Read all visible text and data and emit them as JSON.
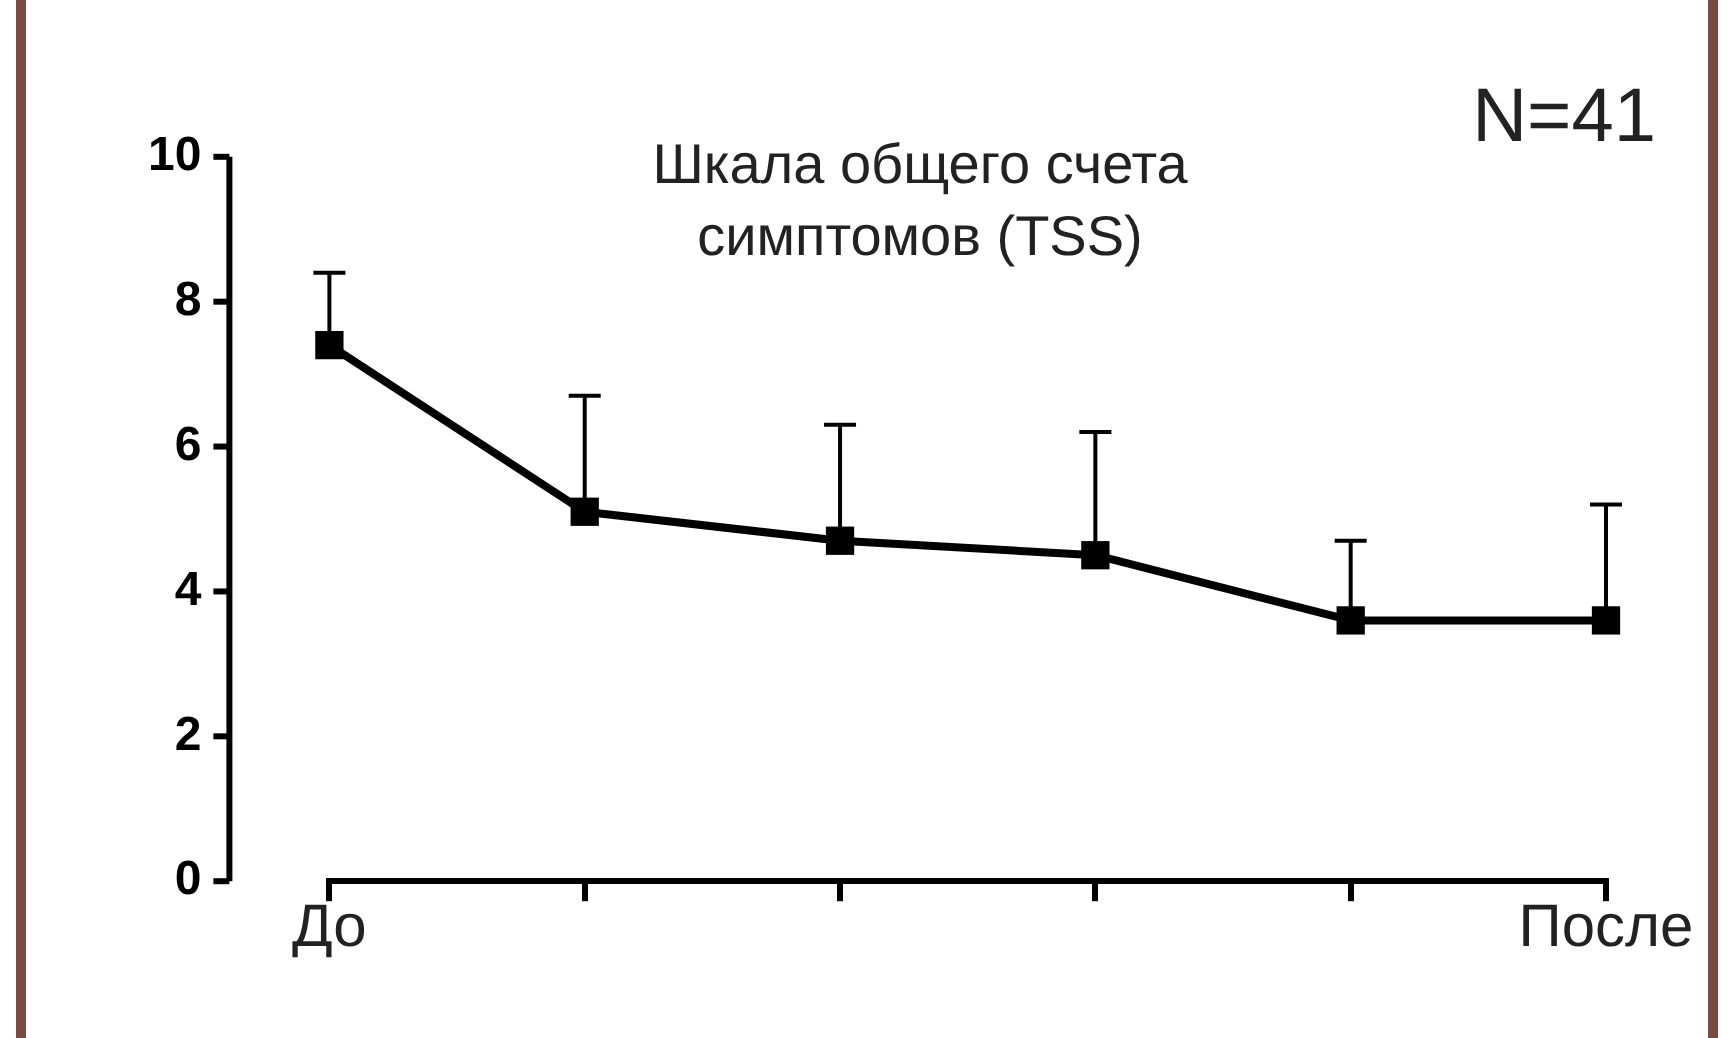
{
  "chart_data": {
    "type": "line",
    "title": "Шкала общего счета симптомов (TSS)",
    "categories": [
      "До",
      null,
      null,
      null,
      null,
      "После"
    ],
    "series": [
      {
        "color": "#000000",
        "values": [
          7.4,
          5.1,
          4.7,
          4.5,
          3.6,
          3.6
        ],
        "errors": [
          [
            7.4,
            8.4
          ],
          [
            5.1,
            6.7
          ],
          [
            4.7,
            6.3
          ],
          [
            4.5,
            6.2
          ],
          [
            3.6,
            4.7
          ],
          [
            3.6,
            5.2
          ]
        ]
      }
    ],
    "ylim": [
      0,
      10
    ],
    "yticks": [
      0,
      2,
      4,
      6,
      8,
      10
    ],
    "annotations": [
      "N=41"
    ],
    "marker": "square",
    "line_style": "solid",
    "grid": false,
    "legend": false
  }
}
